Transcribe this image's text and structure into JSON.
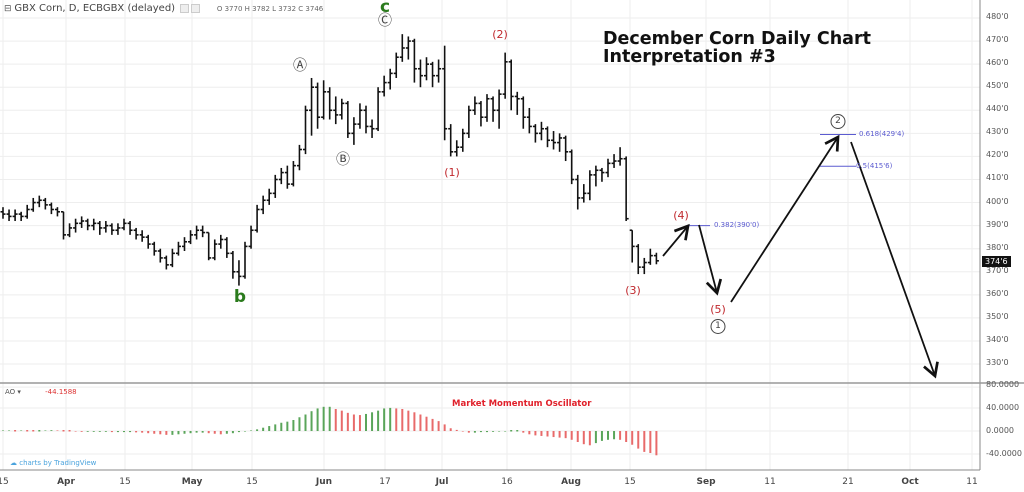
{
  "header": {
    "symbol": "GBX Corn, D, ECBGBX (delayed)",
    "ohlc": "O 3770 H 3782 L 3732 C 3746"
  },
  "title_line1": "December Corn Daily Chart",
  "title_line2": "Interpretation #3",
  "current_price": "374'6",
  "annotations": {
    "A": "Ⓐ",
    "B": "Ⓑ",
    "C": "Ⓒ",
    "c": "c",
    "b": "b",
    "w1": "(1)",
    "w2": "(2)",
    "w3": "(3)",
    "w4": "(4)",
    "w5": "(5)",
    "circ1": "1",
    "circ2": "2"
  },
  "fib_levels": [
    {
      "label": "0.382(390'0)",
      "price": 390
    },
    {
      "label": "0.618(429'4)",
      "price": 429.5
    },
    {
      "label": "0.5(415'6)",
      "price": 415.75
    }
  ],
  "oscillator": {
    "name": "AO",
    "value": "-44.1588",
    "caption": "Market Momentum Oscillator",
    "axis_labels": [
      "80.0000",
      "40.0000",
      "0.0000",
      "-40.0000"
    ],
    "up_color": "#5aa55a",
    "down_color": "#e86a6a"
  },
  "branding": "charts by TradingView",
  "colors": {
    "bar": "#111111",
    "annotation": "#c0282d",
    "wave_label": "#2a7a1c",
    "fib": "#5b5bd0"
  },
  "chart_data": {
    "type": "ohlc",
    "ylim": [
      320,
      485
    ],
    "y_tick_labels": [
      "480'0",
      "470'0",
      "460'0",
      "450'0",
      "440'0",
      "430'0",
      "420'0",
      "410'0",
      "400'0",
      "390'0",
      "380'0",
      "370'0",
      "360'0",
      "350'0",
      "340'0",
      "330'0"
    ],
    "x_tick_labels": [
      "15",
      "Apr",
      "15",
      "May",
      "15",
      "Jun",
      "17",
      "Jul",
      "16",
      "Aug",
      "15",
      "Sep",
      "11",
      "21",
      "Oct",
      "11"
    ],
    "grid": true,
    "bars": [
      [
        396,
        398,
        393,
        395
      ],
      [
        395,
        397,
        392,
        394
      ],
      [
        394,
        397,
        392,
        395
      ],
      [
        395,
        396,
        392,
        394
      ],
      [
        394,
        399,
        393,
        397
      ],
      [
        397,
        402,
        396,
        400
      ],
      [
        400,
        403,
        398,
        401
      ],
      [
        401,
        402,
        397,
        399
      ],
      [
        399,
        400,
        395,
        397
      ],
      [
        397,
        398,
        394,
        396
      ],
      [
        396,
        396,
        384,
        386
      ],
      [
        386,
        391,
        385,
        389
      ],
      [
        389,
        393,
        387,
        391
      ],
      [
        391,
        394,
        389,
        392
      ],
      [
        392,
        393,
        388,
        390
      ],
      [
        390,
        393,
        388,
        391
      ],
      [
        391,
        392,
        386,
        389
      ],
      [
        389,
        392,
        387,
        390
      ],
      [
        390,
        391,
        386,
        388
      ],
      [
        388,
        391,
        386,
        389
      ],
      [
        389,
        393,
        388,
        391
      ],
      [
        391,
        392,
        386,
        388
      ],
      [
        388,
        389,
        384,
        386
      ],
      [
        386,
        388,
        383,
        385
      ],
      [
        385,
        386,
        380,
        382
      ],
      [
        382,
        383,
        377,
        379
      ],
      [
        379,
        380,
        374,
        376
      ],
      [
        376,
        377,
        371,
        373
      ],
      [
        373,
        380,
        372,
        378
      ],
      [
        378,
        383,
        377,
        381
      ],
      [
        381,
        385,
        379,
        383
      ],
      [
        383,
        388,
        382,
        386
      ],
      [
        386,
        390,
        384,
        388
      ],
      [
        388,
        390,
        385,
        387
      ],
      [
        387,
        387,
        375,
        376
      ],
      [
        376,
        384,
        375,
        382
      ],
      [
        382,
        386,
        380,
        384
      ],
      [
        384,
        385,
        376,
        378
      ],
      [
        378,
        379,
        367,
        370
      ],
      [
        370,
        375,
        364,
        368
      ],
      [
        368,
        383,
        367,
        381
      ],
      [
        381,
        390,
        380,
        388
      ],
      [
        388,
        399,
        387,
        397
      ],
      [
        397,
        403,
        395,
        401
      ],
      [
        401,
        406,
        399,
        404
      ],
      [
        404,
        412,
        402,
        410
      ],
      [
        410,
        415,
        408,
        413
      ],
      [
        413,
        416,
        406,
        408
      ],
      [
        408,
        418,
        407,
        416
      ],
      [
        416,
        425,
        414,
        423
      ],
      [
        423,
        442,
        421,
        440
      ],
      [
        440,
        454,
        429,
        450
      ],
      [
        450,
        452,
        432,
        437
      ],
      [
        437,
        453,
        436,
        448
      ],
      [
        448,
        450,
        436,
        440
      ],
      [
        440,
        446,
        434,
        438
      ],
      [
        438,
        445,
        436,
        443
      ],
      [
        443,
        444,
        428,
        430
      ],
      [
        430,
        437,
        425,
        434
      ],
      [
        434,
        443,
        432,
        440
      ],
      [
        440,
        442,
        430,
        433
      ],
      [
        433,
        436,
        428,
        432
      ],
      [
        432,
        450,
        431,
        448
      ],
      [
        448,
        455,
        446,
        452
      ],
      [
        452,
        458,
        449,
        456
      ],
      [
        456,
        465,
        454,
        463
      ],
      [
        463,
        473,
        461,
        467
      ],
      [
        467,
        472,
        462,
        470
      ],
      [
        470,
        471,
        452,
        458
      ],
      [
        458,
        462,
        450,
        455
      ],
      [
        455,
        463,
        453,
        460
      ],
      [
        460,
        461,
        450,
        455
      ],
      [
        455,
        462,
        452,
        458
      ],
      [
        458,
        468,
        427,
        432
      ],
      [
        432,
        434,
        420,
        422
      ],
      [
        422,
        427,
        420,
        424
      ],
      [
        424,
        432,
        422,
        430
      ],
      [
        430,
        442,
        428,
        440
      ],
      [
        440,
        446,
        438,
        443
      ],
      [
        443,
        444,
        433,
        437
      ],
      [
        437,
        447,
        435,
        445
      ],
      [
        445,
        446,
        435,
        440
      ],
      [
        440,
        449,
        432,
        447
      ],
      [
        447,
        465,
        445,
        461
      ],
      [
        461,
        462,
        440,
        446
      ],
      [
        446,
        448,
        438,
        445
      ],
      [
        445,
        446,
        432,
        437
      ],
      [
        437,
        441,
        430,
        433
      ],
      [
        433,
        434,
        426,
        430
      ],
      [
        430,
        435,
        427,
        432
      ],
      [
        432,
        433,
        424,
        427
      ],
      [
        427,
        431,
        423,
        426
      ],
      [
        426,
        430,
        422,
        428
      ],
      [
        428,
        429,
        418,
        422
      ],
      [
        422,
        423,
        408,
        410
      ],
      [
        410,
        412,
        397,
        402
      ],
      [
        402,
        408,
        400,
        404
      ],
      [
        404,
        414,
        401,
        412
      ],
      [
        412,
        416,
        407,
        414
      ],
      [
        414,
        415,
        409,
        413
      ],
      [
        413,
        419,
        411,
        417
      ],
      [
        417,
        421,
        415,
        418
      ],
      [
        418,
        424,
        416,
        419
      ],
      [
        419,
        420,
        392,
        393
      ],
      [
        388,
        388,
        374,
        381
      ],
      [
        381,
        382,
        369,
        372
      ],
      [
        372,
        376,
        369,
        374
      ],
      [
        374,
        380,
        373,
        377
      ],
      [
        377,
        378.25,
        373.25,
        374.75
      ]
    ],
    "ao_values": [
      1,
      1,
      0.5,
      1,
      0.5,
      0,
      0.5,
      1,
      1.5,
      1,
      0.5,
      -0.5,
      -1,
      -1.5,
      -1.5,
      -1.5,
      -1.5,
      -1.5,
      -2,
      -2,
      -2,
      -2,
      -2.5,
      -3,
      -4,
      -5,
      -6,
      -7,
      -7,
      -6,
      -5,
      -4,
      -3,
      -3,
      -4,
      -5,
      -6,
      -5,
      -4,
      -2,
      -1,
      1,
      3,
      6,
      9,
      12,
      15,
      17,
      20,
      25,
      30,
      36,
      41,
      44,
      44,
      40,
      37,
      33,
      30,
      29,
      31,
      34,
      37,
      41,
      42,
      41,
      40,
      37,
      34,
      30,
      26,
      22,
      18,
      12,
      5,
      2,
      -1,
      -3,
      -3,
      -2,
      -2,
      -1.5,
      -1,
      -1,
      -0.5,
      -0.5,
      -3,
      -6,
      -8,
      -9,
      -10,
      -11,
      -12,
      -13,
      -16,
      -20,
      -24,
      -26,
      -22,
      -18,
      -16,
      -15,
      -16,
      -20,
      -25,
      -32,
      -38,
      -40,
      -44.1588
    ],
    "projection_path": [
      374.75,
      390,
      356,
      429.5,
      325
    ]
  }
}
